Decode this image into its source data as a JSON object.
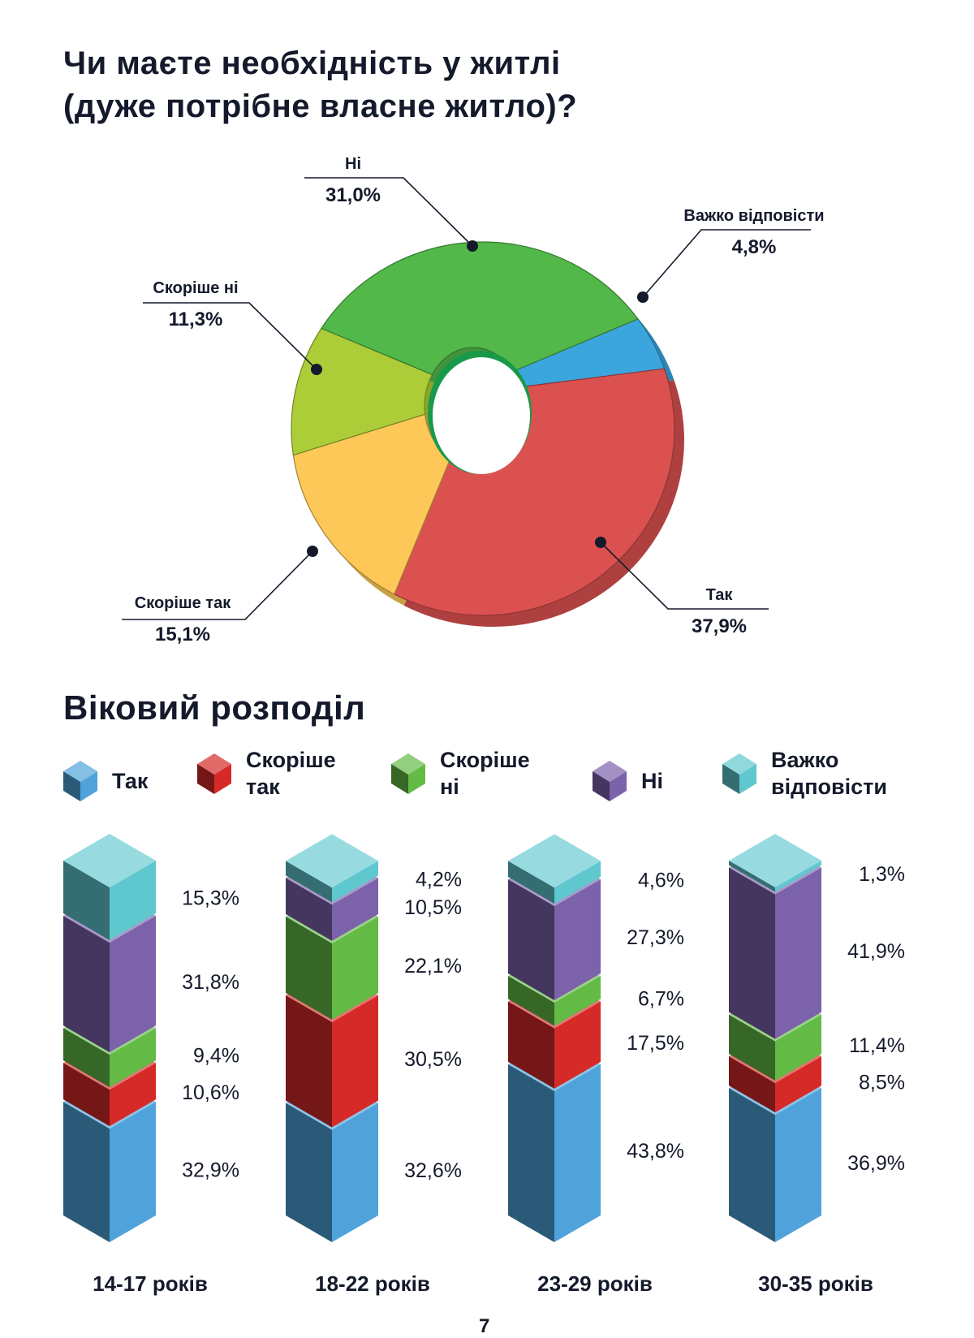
{
  "title_lines": [
    "Чи маєте необхідність у житлі",
    "(дуже потрібне власне житло)?"
  ],
  "section2_title": "Віковий розподіл",
  "page_number": "7",
  "chart_data": [
    {
      "type": "pie",
      "style": "3d-donut",
      "categories": [
        "Важко відповісти",
        "Так",
        "Скоріше так",
        "Скоріше ні",
        "Ні"
      ],
      "values": [
        4.8,
        37.9,
        15.1,
        11.3,
        31.0
      ],
      "value_labels": [
        "4,8%",
        "37,9%",
        "15,1%",
        "11,3%",
        "31,0%"
      ],
      "colors": [
        "#3ba6de",
        "#da514f",
        "#fdc858",
        "#accd37",
        "#52b849"
      ]
    },
    {
      "type": "bar",
      "style": "3d-stacked-100",
      "categories": [
        "14-17 років",
        "18-22 років",
        "23-29 років",
        "30-35 років"
      ],
      "legend_position": "top",
      "series": [
        {
          "name": "Так",
          "values": [
            32.9,
            32.6,
            43.8,
            36.9
          ],
          "labels": [
            "32,9%",
            "32,6%",
            "43,8%",
            "36,9%"
          ],
          "color": "#4fa3da"
        },
        {
          "name": "Скоріше так",
          "values": [
            10.6,
            30.5,
            17.5,
            8.5
          ],
          "labels": [
            "10,6%",
            "30,5%",
            "17,5%",
            "8,5%"
          ],
          "color": "#d62a29"
        },
        {
          "name": "Скоріше ні",
          "values": [
            9.4,
            22.1,
            6.7,
            11.4
          ],
          "labels": [
            "9,4%",
            "22,1%",
            "6,7%",
            "11,4%"
          ],
          "color": "#63bb46"
        },
        {
          "name": "Ні",
          "values": [
            31.8,
            10.5,
            27.3,
            41.9
          ],
          "labels": [
            "31,8%",
            "10,5%",
            "27,3%",
            "41,9%"
          ],
          "color": "#7b62ab"
        },
        {
          "name": "Важко відповісти",
          "values": [
            15.3,
            4.2,
            4.6,
            1.3
          ],
          "labels": [
            "15,3%",
            "4,2%",
            "4,6%",
            "1,3%"
          ],
          "color": "#5fc8cf"
        }
      ],
      "legend_labels": [
        [
          "Так"
        ],
        [
          "Скоріше",
          "так"
        ],
        [
          "Скоріше",
          "ні"
        ],
        [
          "Ні"
        ],
        [
          "Важко",
          "відповісти"
        ]
      ]
    }
  ]
}
